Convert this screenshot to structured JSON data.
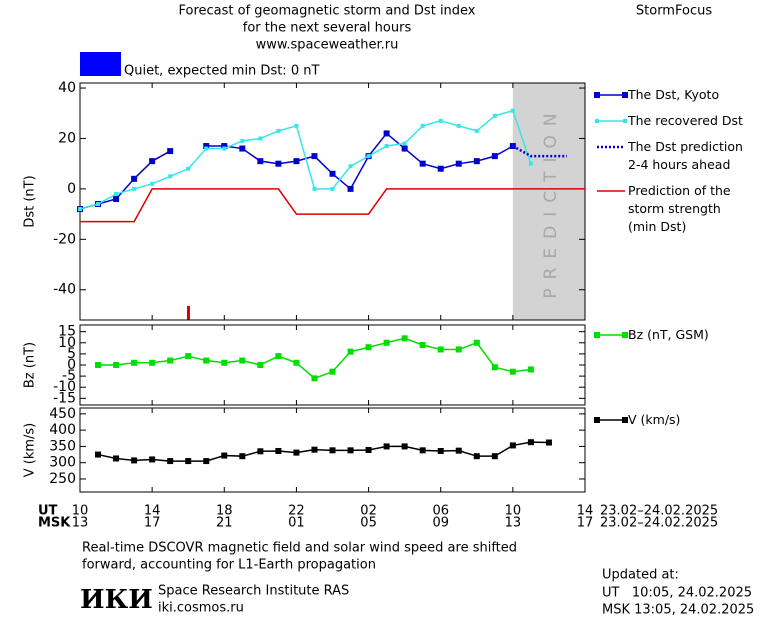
{
  "header": {
    "title_lines": [
      "Forecast of geomagnetic storm and Dst index",
      "for the next several hours",
      "www.spaceweather.ru"
    ],
    "brand": "StormFocus",
    "status": "Quiet, expected min Dst: 0 nT",
    "status_color": "#0000ff"
  },
  "chart_data": [
    {
      "type": "line",
      "y_label": "Dst (nT)",
      "ylim": [
        -52,
        42
      ],
      "yticks": [
        -40,
        -20,
        0,
        20,
        40
      ],
      "prediction_region": {
        "x": [
          24,
          28
        ],
        "label": "PREDICTION",
        "color": "#d3d3d3"
      },
      "series": [
        {
          "name": "The Dst, Kyoto",
          "color": "#0000cc",
          "marker": "square",
          "linestyle": "solid",
          "x": [
            0,
            1,
            2,
            3,
            4,
            5,
            6,
            7,
            8,
            9,
            10,
            11,
            12,
            13,
            14,
            15,
            16,
            17,
            18,
            19,
            20,
            21,
            22,
            23,
            24
          ],
          "values": [
            -8,
            -6,
            -4,
            4,
            11,
            15,
            null,
            17,
            17,
            16,
            11,
            10,
            11,
            13,
            6,
            0,
            13,
            22,
            16,
            10,
            8,
            10,
            11,
            13,
            17
          ]
        },
        {
          "name": "The recovered Dst",
          "color": "#33e8e8",
          "marker": "small-square",
          "linestyle": "solid",
          "x": [
            0,
            1,
            2,
            3,
            4,
            5,
            6,
            7,
            8,
            9,
            10,
            11,
            12,
            13,
            14,
            15,
            16,
            17,
            18,
            19,
            20,
            21,
            22,
            23,
            24,
            25
          ],
          "values": [
            -8,
            -6,
            -2,
            0,
            2,
            5,
            8,
            16,
            16,
            19,
            20,
            23,
            25,
            0,
            0,
            9,
            13,
            17,
            18,
            25,
            27,
            25,
            23,
            29,
            31,
            10
          ]
        },
        {
          "name": "The Dst prediction\n2-4 hours ahead",
          "color": "#0000cc",
          "marker": null,
          "linestyle": "dotted",
          "x": [
            24,
            25,
            26,
            27
          ],
          "values": [
            17,
            13,
            13,
            13
          ]
        },
        {
          "name": "Prediction of the\nstorm strength\n(min Dst)",
          "color": "#dd0000",
          "marker": null,
          "linestyle": "solid",
          "x": [
            0,
            3,
            4,
            11,
            12,
            16,
            17,
            28
          ],
          "values": [
            -13,
            -13,
            0,
            0,
            -10,
            -10,
            0,
            0
          ]
        }
      ]
    },
    {
      "type": "line",
      "y_label": "Bz (nT)",
      "ylim": [
        -18,
        18
      ],
      "yticks": [
        -15,
        -10,
        -5,
        0,
        5,
        10,
        15
      ],
      "series": [
        {
          "name": "Bz (nT, GSM)",
          "color": "#00dd00",
          "marker": "square",
          "linestyle": "solid",
          "x": [
            1,
            2,
            3,
            4,
            5,
            6,
            7,
            8,
            9,
            10,
            11,
            12,
            13,
            14,
            15,
            16,
            17,
            18,
            19,
            20,
            21,
            22,
            23,
            24,
            25
          ],
          "values": [
            0,
            0,
            1,
            1,
            2,
            4,
            2,
            1,
            2,
            0,
            4,
            1,
            -6,
            -3,
            6,
            8,
            10,
            12,
            9,
            7,
            7,
            10,
            -1,
            -3,
            -2
          ]
        }
      ]
    },
    {
      "type": "line",
      "y_label": "V (km/s)",
      "ylim": [
        210,
        468
      ],
      "yticks": [
        250,
        300,
        350,
        400,
        450
      ],
      "xlim": [
        0,
        28
      ],
      "xticks": [
        {
          "value": 0,
          "label": "10"
        },
        {
          "value": 4,
          "label": "14"
        },
        {
          "value": 8,
          "label": "18"
        },
        {
          "value": 12,
          "label": "22"
        },
        {
          "value": 16,
          "label": "02"
        },
        {
          "value": 20,
          "label": "06"
        },
        {
          "value": 24,
          "label": "10"
        },
        {
          "value": 28,
          "label": "14"
        }
      ],
      "xticks_msk": [
        {
          "value": 0,
          "label": "13"
        },
        {
          "value": 4,
          "label": "17"
        },
        {
          "value": 8,
          "label": "21"
        },
        {
          "value": 12,
          "label": "01"
        },
        {
          "value": 16,
          "label": "05"
        },
        {
          "value": 20,
          "label": "09"
        },
        {
          "value": 24,
          "label": "13"
        },
        {
          "value": 28,
          "label": "17"
        }
      ],
      "x_row_labels": [
        "UT",
        "MSK"
      ],
      "date_range": "23.02–24.02.2025",
      "series": [
        {
          "name": "V (km/s)",
          "color": "#000000",
          "marker": "square",
          "linestyle": "solid",
          "x": [
            1,
            2,
            3,
            4,
            5,
            6,
            7,
            8,
            9,
            10,
            11,
            12,
            13,
            14,
            15,
            16,
            17,
            18,
            19,
            20,
            21,
            22,
            23,
            24,
            25,
            26
          ],
          "values": [
            325,
            313,
            307,
            310,
            305,
            305,
            305,
            322,
            320,
            335,
            336,
            331,
            340,
            338,
            338,
            339,
            350,
            350,
            338,
            336,
            337,
            320,
            320,
            353,
            363,
            362
          ]
        }
      ]
    }
  ],
  "footer": {
    "note_lines": [
      "Real-time DSCOVR magnetic field and solar wind speed are shifted",
      "forward, accounting for L1-Earth propagation"
    ],
    "logo": "ИКИ",
    "org": "Space Research Institute RAS",
    "url": "iki.cosmos.ru",
    "updated_lines": [
      "Updated at:",
      "UT   10:05, 24.02.2025",
      "MSK 13:05, 24.02.2025"
    ]
  }
}
